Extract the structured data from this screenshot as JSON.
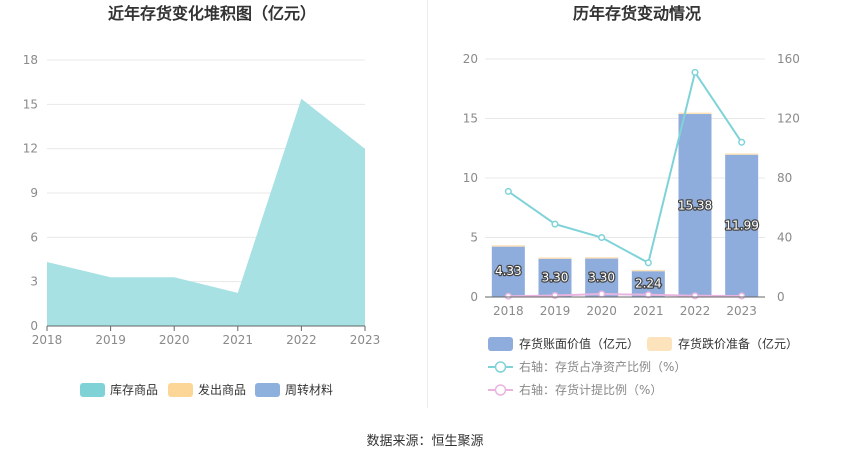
{
  "footer": {
    "source": "数据来源：恒生聚源"
  },
  "colors": {
    "area": "#a8e1e3",
    "legend_inventory": "#7fd3d6",
    "legend_shipped": "#fcd697",
    "legend_turnover": "#8eb0dd",
    "bar": "#8eacdc",
    "bar_cap": "#fde3bc",
    "line_ratio": "#7fd3d8",
    "line_provision": "#e9b5e0",
    "axis_text": "#8a8a8a",
    "title": "#333333",
    "grid": "#e8e8e8"
  },
  "chart_data": [
    {
      "type": "area",
      "title": "近年存货变化堆积图（亿元）",
      "categories": [
        "2018",
        "2019",
        "2020",
        "2021",
        "2022",
        "2023"
      ],
      "y_ticks": [
        "0",
        "3",
        "6",
        "9",
        "12",
        "15",
        "18"
      ],
      "ylim": [
        0,
        18
      ],
      "series": [
        {
          "name": "库存商品",
          "values": [
            4.33,
            3.3,
            3.3,
            2.24,
            15.38,
            11.99
          ]
        },
        {
          "name": "发出商品",
          "values": [
            0,
            0,
            0,
            0,
            0,
            0
          ]
        },
        {
          "name": "周转材料",
          "values": [
            0,
            0,
            0,
            0,
            0,
            0
          ]
        }
      ],
      "legend": [
        "库存商品",
        "发出商品",
        "周转材料"
      ],
      "legend_position": "bottom"
    },
    {
      "type": "bar",
      "title": "历年存货变动情况",
      "categories": [
        "2018",
        "2019",
        "2020",
        "2021",
        "2022",
        "2023"
      ],
      "y_left_ticks": [
        "0",
        "5",
        "10",
        "15",
        "20"
      ],
      "y_right_ticks": [
        "0",
        "40",
        "80",
        "120",
        "160"
      ],
      "ylim_left": [
        0,
        20
      ],
      "ylim_right": [
        0,
        160
      ],
      "series": [
        {
          "name": "存货账面价值（亿元）",
          "axis": "left",
          "values": [
            4.33,
            3.3,
            3.3,
            2.24,
            15.38,
            11.99
          ],
          "labels": [
            "4.33",
            "3.30",
            "3.30",
            "2.24",
            "15.38",
            "11.99"
          ]
        },
        {
          "name": "存货跌价准备（亿元）",
          "axis": "left",
          "values": [
            0.02,
            0.03,
            0.05,
            0.04,
            0.12,
            0.08
          ]
        },
        {
          "name": "右轴：存货占净资产比例（%）",
          "axis": "right",
          "values": [
            71,
            49,
            40,
            23,
            151,
            104
          ]
        },
        {
          "name": "右轴：存货计提比例（%）",
          "axis": "right",
          "values": [
            0.5,
            1.0,
            2.0,
            1.5,
            0.8,
            0.7
          ]
        }
      ],
      "legend_position": "bottom"
    }
  ]
}
